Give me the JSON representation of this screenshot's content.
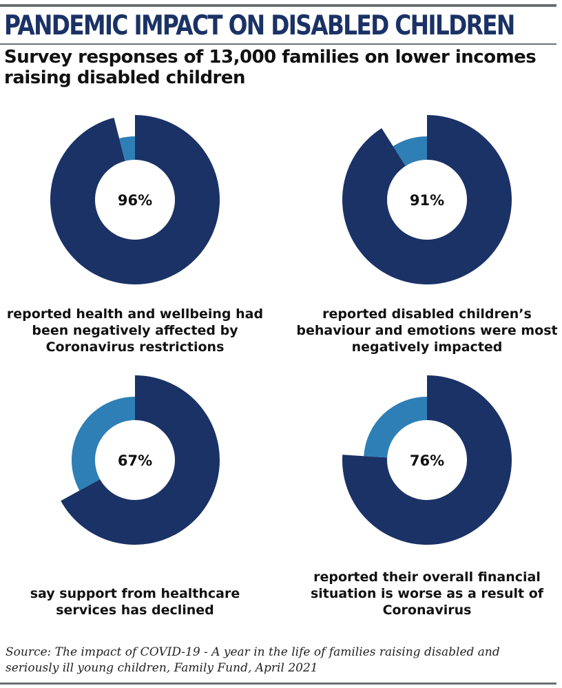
{
  "header": {
    "title": "PANDEMIC IMPACT ON DISABLED CHILDREN",
    "subtitle": "Survey responses of 13,000 families on lower incomes raising disabled children"
  },
  "chart_data": [
    {
      "type": "pie",
      "value": 96,
      "value_label": "96%",
      "caption": "reported health and wellbeing had been negatively affected by Coronavirus restrictions"
    },
    {
      "type": "pie",
      "value": 91,
      "value_label": "91%",
      "caption": "reported disabled children’s behaviour and emotions were most negatively impacted"
    },
    {
      "type": "pie",
      "value": 67,
      "value_label": "67%",
      "caption": "say support from healthcare services has declined"
    },
    {
      "type": "pie",
      "value": 76,
      "value_label": "76%",
      "caption": "reported their overall financial situation is worse as a result of Coronavirus"
    }
  ],
  "colors": {
    "primary": "#1b3266",
    "secondary": "#2e7fb5",
    "title": "#1b3266"
  },
  "footer": {
    "source": "Source: The impact of COVID-19 - A year in the life of families raising disabled and seriously ill young children, Family Fund, April 2021"
  }
}
